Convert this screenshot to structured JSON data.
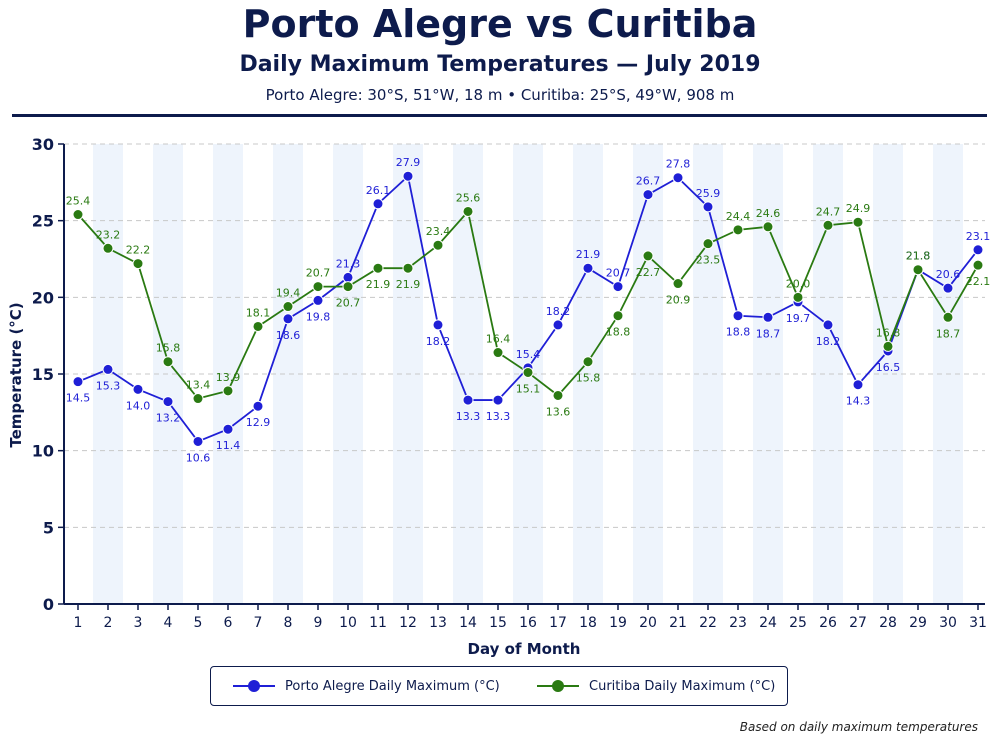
{
  "header": {
    "title": "Porto Alegre vs Curitiba",
    "subtitle": "Daily Maximum Temperatures — July 2019",
    "meta": "Porto Alegre: 30°S, 51°W, 18 m  •  Curitiba: 25°S, 49°W, 908 m"
  },
  "footnote": "Based on daily maximum temperatures",
  "colors": {
    "porto": "#1f1fd6",
    "curitiba": "#2a7a12",
    "axis": "#0d1b4c",
    "band": "#eef4fc"
  },
  "chart_data": {
    "type": "line",
    "title": "Porto Alegre vs Curitiba",
    "subtitle": "Daily Maximum Temperatures — July 2019",
    "xlabel": "Day of Month",
    "ylabel": "Temperature (°C)",
    "ylim": [
      0,
      30
    ],
    "yticks": [
      0,
      5,
      10,
      15,
      20,
      25,
      30
    ],
    "grid": true,
    "legend_position": "bottom",
    "x": [
      1,
      2,
      3,
      4,
      5,
      6,
      7,
      8,
      9,
      10,
      11,
      12,
      13,
      14,
      15,
      16,
      17,
      18,
      19,
      20,
      21,
      22,
      23,
      24,
      25,
      26,
      27,
      28,
      29,
      30,
      31
    ],
    "series": [
      {
        "name": "Porto Alegre Daily Maximum (°C)",
        "color": "#1f1fd6",
        "values": [
          14.5,
          15.3,
          14.0,
          13.2,
          10.6,
          11.4,
          12.9,
          18.6,
          19.8,
          21.3,
          26.1,
          27.9,
          18.2,
          13.3,
          13.3,
          15.4,
          18.2,
          21.9,
          20.7,
          26.7,
          27.8,
          25.9,
          18.8,
          18.7,
          19.7,
          18.2,
          14.3,
          16.5,
          21.8,
          20.6,
          23.1
        ]
      },
      {
        "name": "Curitiba Daily Maximum (°C)",
        "color": "#2a7a12",
        "values": [
          25.4,
          23.2,
          22.2,
          15.8,
          13.4,
          13.9,
          18.1,
          19.4,
          20.7,
          20.7,
          21.9,
          21.9,
          23.4,
          25.6,
          16.4,
          15.1,
          13.6,
          15.8,
          18.8,
          22.7,
          20.9,
          23.5,
          24.4,
          24.6,
          20.0,
          24.7,
          24.9,
          16.8,
          21.8,
          18.7,
          22.1
        ]
      }
    ]
  }
}
